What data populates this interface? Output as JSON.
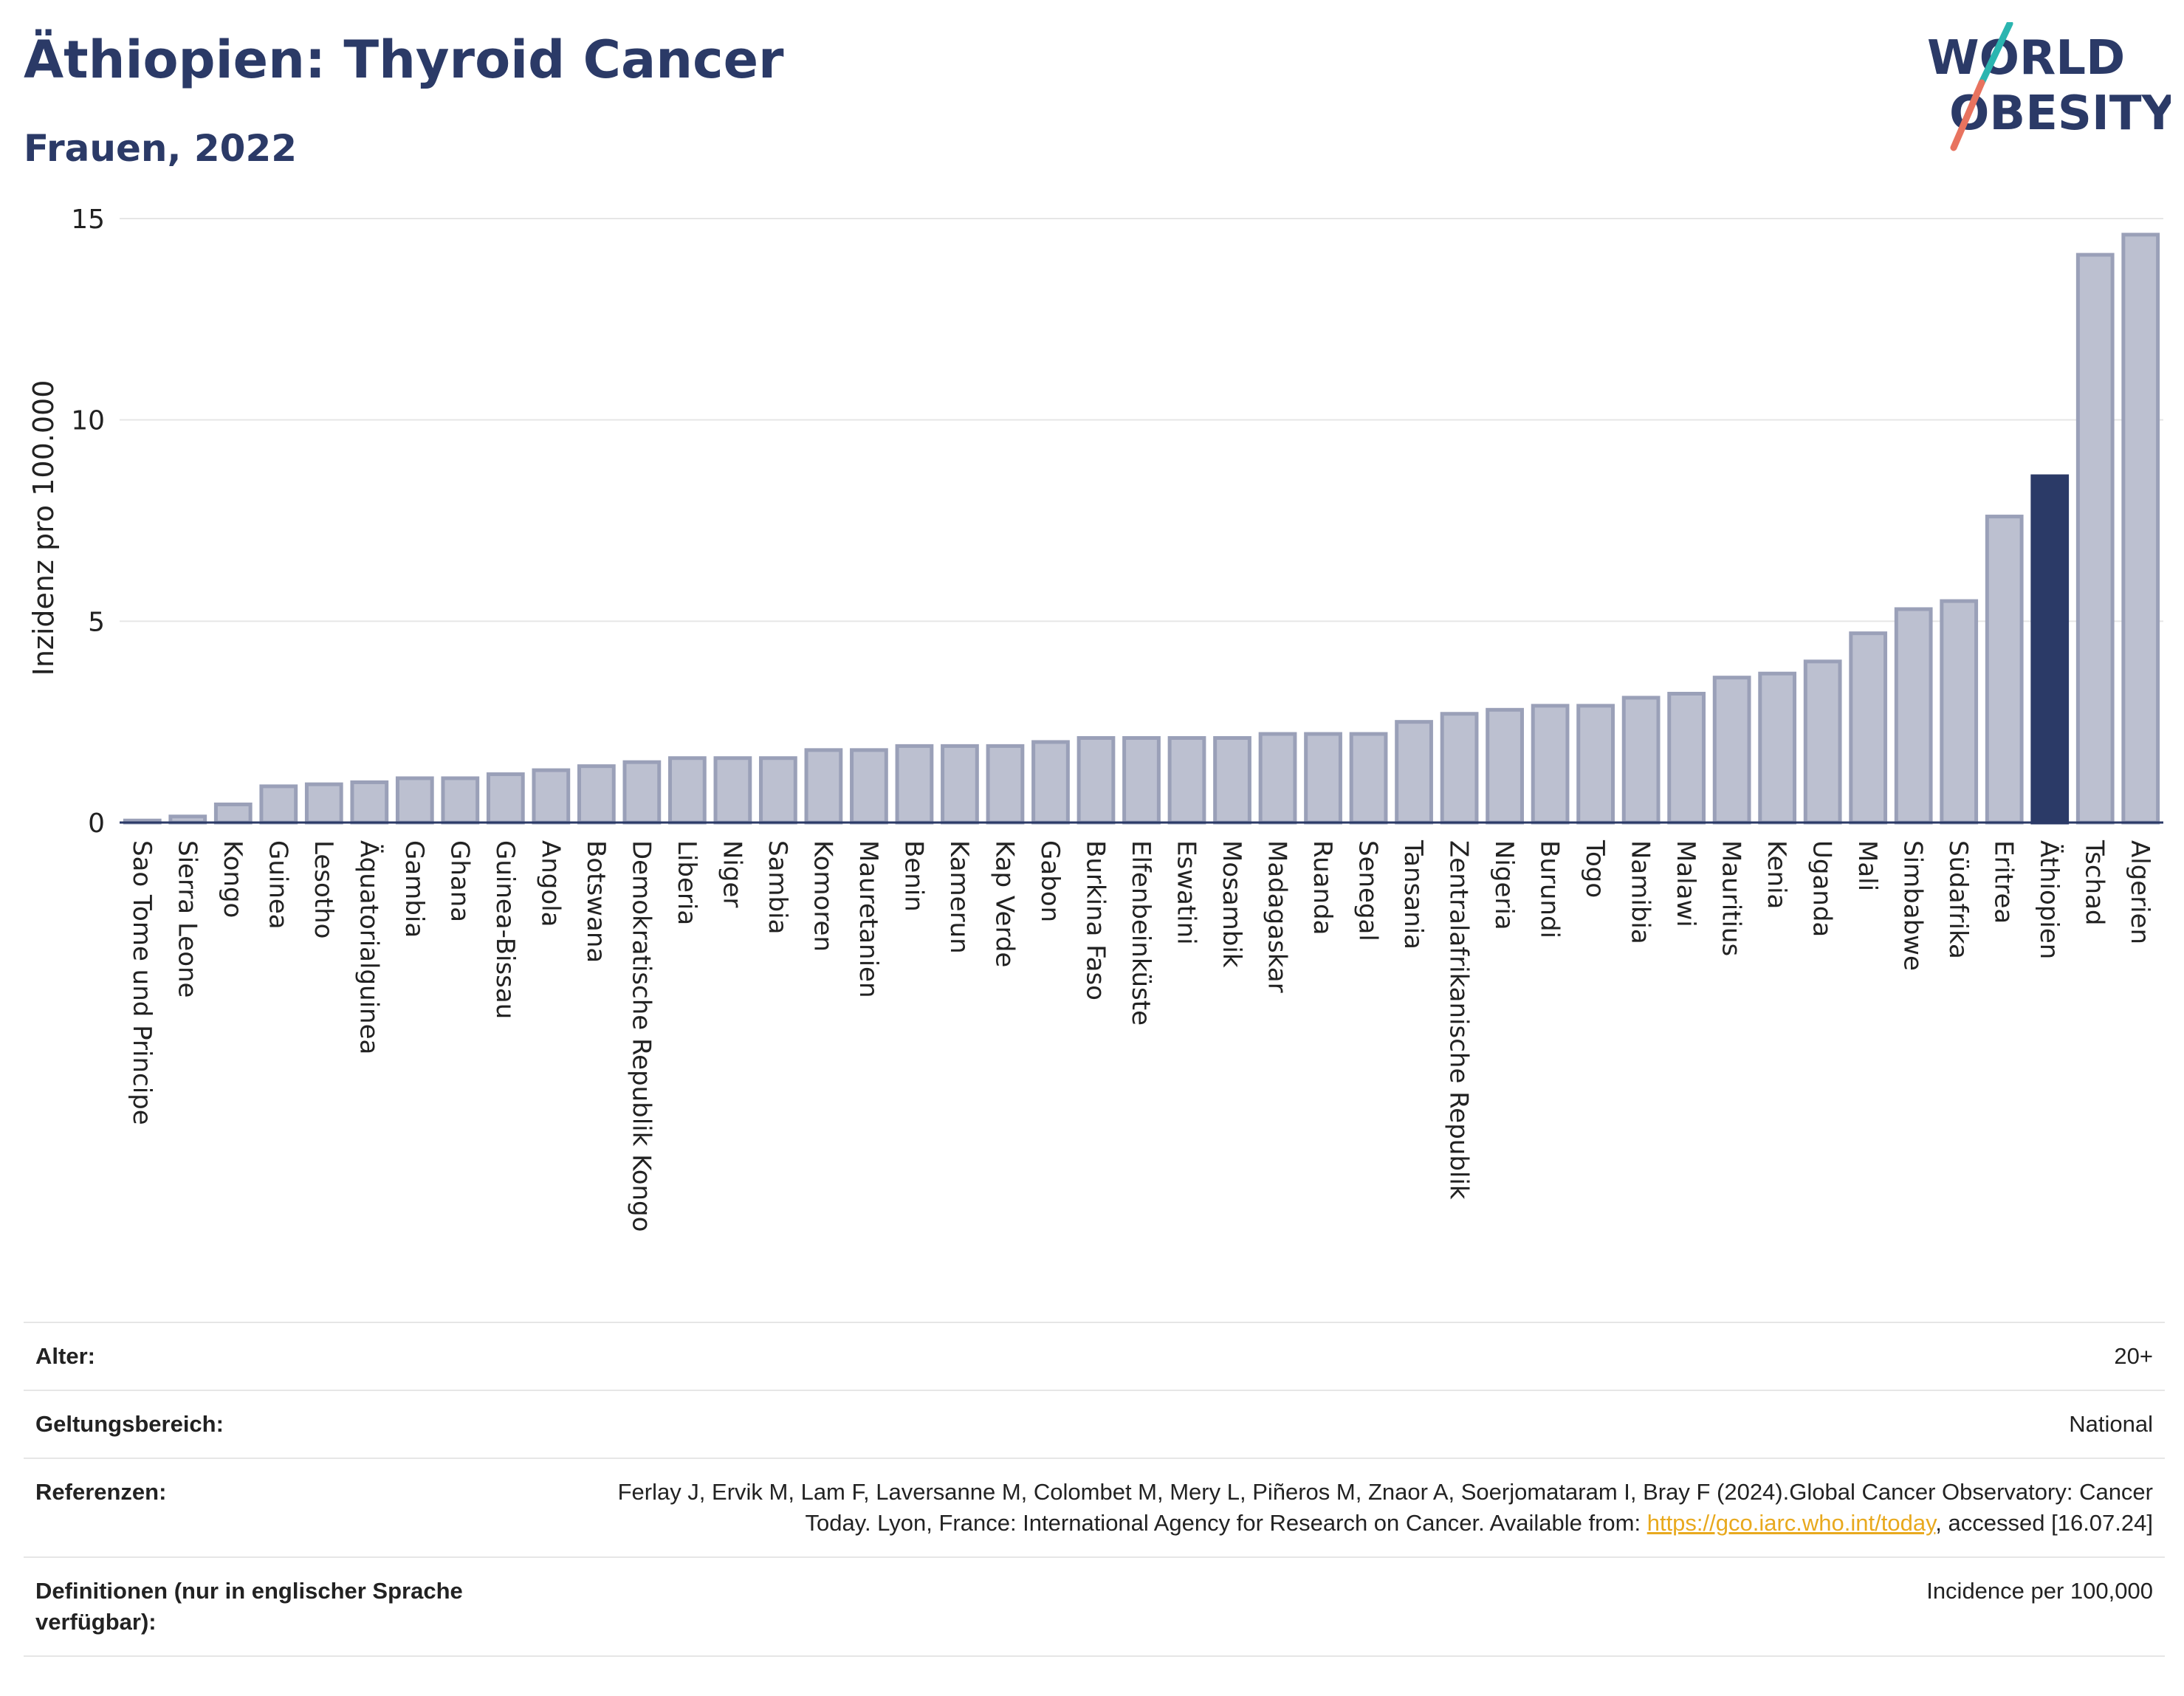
{
  "header": {
    "title": "Äthiopien: Thyroid Cancer",
    "subtitle": "Frauen, 2022",
    "logo_line1": "WORLD",
    "logo_line2": "OBESITY"
  },
  "colors": {
    "bar": "#bcc0d0",
    "bar_border": "#9aa0b8",
    "highlight": "#2b3a67",
    "title": "#2b3a67",
    "grid": "#e6e6e6",
    "logo_teal": "#2bb5b0",
    "logo_coral": "#e8735f",
    "link": "#e8a91e"
  },
  "chart_data": {
    "type": "bar",
    "ylabel": "Inzidenz pro 100.000",
    "ylim": [
      0,
      15
    ],
    "yticks": [
      0,
      5,
      10,
      15
    ],
    "highlight": "Äthiopien",
    "categories": [
      "Sao Tome und Principe",
      "Sierra Leone",
      "Kongo",
      "Guinea",
      "Lesotho",
      "Äquatorialguinea",
      "Gambia",
      "Ghana",
      "Guinea-Bissau",
      "Angola",
      "Botswana",
      "Demokratische Republik Kongo",
      "Liberia",
      "Niger",
      "Sambia",
      "Komoren",
      "Mauretanien",
      "Benin",
      "Kamerun",
      "Kap Verde",
      "Gabon",
      "Burkina Faso",
      "Elfenbeinküste",
      "Eswatini",
      "Mosambik",
      "Madagaskar",
      "Ruanda",
      "Senegal",
      "Tansania",
      "Zentralafrikanische Republik",
      "Nigeria",
      "Burundi",
      "Togo",
      "Namibia",
      "Malawi",
      "Mauritius",
      "Kenia",
      "Uganda",
      "Mali",
      "Simbabwe",
      "Südafrika",
      "Eritrea",
      "Äthiopien",
      "Tschad",
      "Algerien"
    ],
    "values": [
      0.05,
      0.15,
      0.45,
      0.9,
      0.95,
      1.0,
      1.1,
      1.1,
      1.2,
      1.3,
      1.4,
      1.5,
      1.6,
      1.6,
      1.6,
      1.8,
      1.8,
      1.9,
      1.9,
      1.9,
      2.0,
      2.1,
      2.1,
      2.1,
      2.1,
      2.2,
      2.2,
      2.2,
      2.5,
      2.7,
      2.8,
      2.9,
      2.9,
      3.1,
      3.2,
      3.6,
      3.7,
      4.0,
      4.7,
      5.3,
      5.5,
      7.6,
      8.6,
      14.1,
      14.6
    ]
  },
  "footer": {
    "rows": [
      {
        "label": "Alter:",
        "value": "20+"
      },
      {
        "label": "Geltungsbereich:",
        "value": "National"
      },
      {
        "label": "Referenzen:",
        "value_before": "Ferlay J, Ervik M, Lam F, Laversanne M, Colombet M, Mery L, Piñeros M, Znaor A, Soerjomataram I, Bray F (2024).Global Cancer Observatory: Cancer Today. Lyon, France: International Agency for Research on Cancer. Available from: ",
        "link": "https://gco.iarc.who.int/today",
        "value_after": ", accessed [16.07.24]"
      },
      {
        "label": "Definitionen (nur in englischer Sprache verfügbar):",
        "value": "Incidence per 100,000"
      }
    ]
  }
}
